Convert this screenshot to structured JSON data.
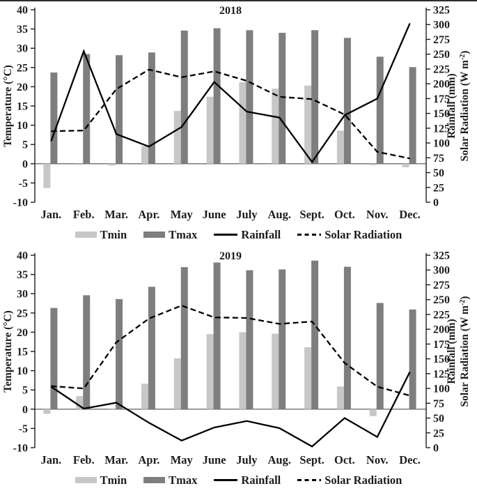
{
  "figure": {
    "colors": {
      "tmin_bar": "#c7c7c7",
      "tmax_bar": "#7e7e7e",
      "line": "#000000",
      "axis": "#1c1c1c",
      "zero_line": "#4f4f4f"
    },
    "legend": [
      {
        "label": "Tmin",
        "swatch": "bar",
        "color": "#c7c7c7"
      },
      {
        "label": "Tmax",
        "swatch": "bar",
        "color": "#7e7e7e"
      },
      {
        "label": "Rainfall",
        "swatch": "solid-line",
        "color": "#000000"
      },
      {
        "label": "Solar Radiation",
        "swatch": "dashed-line",
        "color": "#000000"
      }
    ]
  },
  "chart_data": [
    {
      "type": "bar",
      "title": "2018",
      "categories": [
        "Jan.",
        "Feb.",
        "Mar.",
        "Apr.",
        "May",
        "June",
        "July",
        "Aug.",
        "Sept.",
        "Oct.",
        "Nov.",
        "Dec."
      ],
      "left_axis": {
        "label": "Temperature (°C)",
        "min": -10,
        "max": 40,
        "tick_step": 5
      },
      "right_axis": {
        "label_lines": [
          "Rainfall (mm)",
          "Solar Radiation (W m⁻²)"
        ],
        "min": 0,
        "max": 325,
        "tick_step": 25
      },
      "grid": false,
      "legend_position": "bottom",
      "series": [
        {
          "name": "Tmin",
          "type": "bar",
          "axis": "left",
          "values": [
            -6.3,
            -0.3,
            -0.5,
            4.6,
            13.7,
            17.4,
            21.2,
            19.5,
            20.3,
            8.6,
            -0.4,
            -0.9
          ]
        },
        {
          "name": "Tmax",
          "type": "bar",
          "axis": "left",
          "values": [
            23.7,
            28.5,
            28.2,
            28.9,
            34.6,
            35.2,
            34.7,
            34.0,
            34.7,
            32.7,
            27.8,
            25.1
          ]
        },
        {
          "name": "Rainfall",
          "type": "line",
          "style": "solid",
          "axis": "right",
          "values": [
            103,
            255,
            115,
            94,
            127,
            203,
            153,
            143,
            68,
            147,
            175,
            302
          ]
        },
        {
          "name": "Solar Radiation",
          "type": "line",
          "style": "dashed",
          "axis": "right",
          "values": [
            120,
            121,
            191,
            224,
            211,
            221,
            205,
            178,
            174,
            148,
            85,
            74
          ]
        }
      ]
    },
    {
      "type": "bar",
      "title": "2019",
      "categories": [
        "Jan.",
        "Feb.",
        "Mar.",
        "Apr.",
        "May",
        "June",
        "July",
        "Aug.",
        "Sept.",
        "Oct.",
        "Nov.",
        "Dec."
      ],
      "left_axis": {
        "label": "Temperature (°C)",
        "min": -10,
        "max": 40,
        "tick_step": 5
      },
      "right_axis": {
        "label_lines": [
          "Rainfall (mm)",
          "Solar Radiation (W m⁻²)"
        ],
        "min": 0,
        "max": 325,
        "tick_step": 25
      },
      "grid": false,
      "legend_position": "bottom",
      "series": [
        {
          "name": "Tmin",
          "type": "bar",
          "axis": "left",
          "values": [
            -1.2,
            3.4,
            0.2,
            6.6,
            13.2,
            19.5,
            20.0,
            19.6,
            16.1,
            5.9,
            -1.8,
            0
          ]
        },
        {
          "name": "Tmax",
          "type": "bar",
          "axis": "left",
          "values": [
            26.3,
            29.6,
            28.6,
            31.8,
            36.9,
            38.1,
            36.1,
            36.3,
            38.6,
            37.0,
            27.6,
            25.9
          ]
        },
        {
          "name": "Rainfall",
          "type": "line",
          "style": "solid",
          "axis": "right",
          "values": [
            103,
            66,
            76,
            42,
            12,
            34,
            45,
            33,
            2,
            50,
            18,
            128
          ]
        },
        {
          "name": "Solar Radiation",
          "type": "line",
          "style": "dashed",
          "axis": "right",
          "values": [
            104,
            100,
            178,
            218,
            240,
            220,
            219,
            209,
            213,
            143,
            103,
            88
          ]
        }
      ]
    }
  ]
}
